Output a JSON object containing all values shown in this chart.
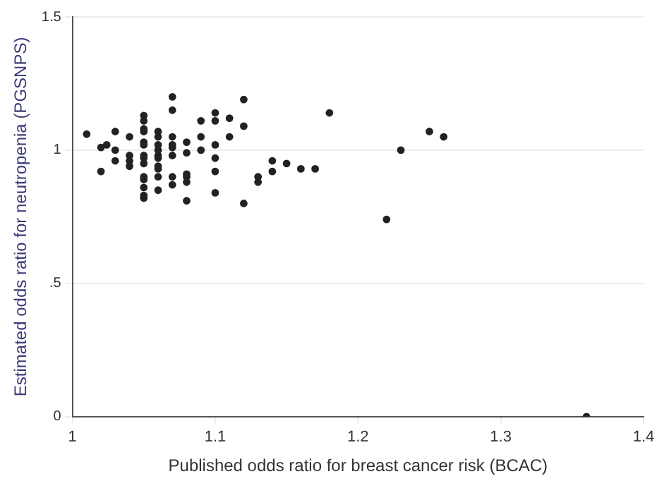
{
  "chart_data": {
    "type": "scatter",
    "xlabel": "Published odds ratio for breast cancer risk (BCAC)",
    "ylabel": "Estimated odds ratio for neutropenia (PGSNPS)",
    "xlim": [
      1,
      1.4
    ],
    "xticks": [
      1,
      1.1,
      1.2,
      1.3,
      1.4
    ],
    "ylim": [
      0,
      1.5
    ],
    "yticks": [
      0,
      {
        "value": 0.5,
        "label": ".5"
      },
      1,
      1.5
    ],
    "grid": "y",
    "marker": "circle",
    "legend": false,
    "series": [
      {
        "color": "#222222",
        "x": [
          1.01,
          1.02,
          1.02,
          1.024,
          1.03,
          1.03,
          1.03,
          1.04,
          1.04,
          1.04,
          1.04,
          1.05,
          1.05,
          1.05,
          1.05,
          1.05,
          1.05,
          1.05,
          1.05,
          1.05,
          1.05,
          1.05,
          1.05,
          1.05,
          1.05,
          1.06,
          1.06,
          1.06,
          1.06,
          1.06,
          1.06,
          1.06,
          1.06,
          1.06,
          1.06,
          1.07,
          1.07,
          1.07,
          1.07,
          1.07,
          1.07,
          1.07,
          1.07,
          1.08,
          1.08,
          1.08,
          1.08,
          1.08,
          1.08,
          1.09,
          1.09,
          1.09,
          1.1,
          1.1,
          1.1,
          1.1,
          1.1,
          1.1,
          1.11,
          1.11,
          1.12,
          1.12,
          1.12,
          1.13,
          1.13,
          1.14,
          1.14,
          1.15,
          1.16,
          1.17,
          1.18,
          1.22,
          1.23,
          1.25,
          1.26,
          1.36
        ],
        "values": [
          1.06,
          1.01,
          0.92,
          1.02,
          1.07,
          1.0,
          0.96,
          1.05,
          0.98,
          0.96,
          0.94,
          1.13,
          1.11,
          1.08,
          1.07,
          1.03,
          1.02,
          0.98,
          0.97,
          0.95,
          0.9,
          0.89,
          0.86,
          0.83,
          0.82,
          1.07,
          1.05,
          1.02,
          1.0,
          0.98,
          0.97,
          0.94,
          0.93,
          0.9,
          0.85,
          1.2,
          1.15,
          1.05,
          1.02,
          1.01,
          0.98,
          0.9,
          0.87,
          1.03,
          0.99,
          0.91,
          0.9,
          0.88,
          0.81,
          1.11,
          1.05,
          1.0,
          1.14,
          1.11,
          1.02,
          0.97,
          0.92,
          0.84,
          1.12,
          1.05,
          1.19,
          1.09,
          0.8,
          0.9,
          0.88,
          0.96,
          0.92,
          0.95,
          0.93,
          0.93,
          1.14,
          0.74,
          1.0,
          1.07,
          1.05,
          0
        ]
      }
    ]
  }
}
